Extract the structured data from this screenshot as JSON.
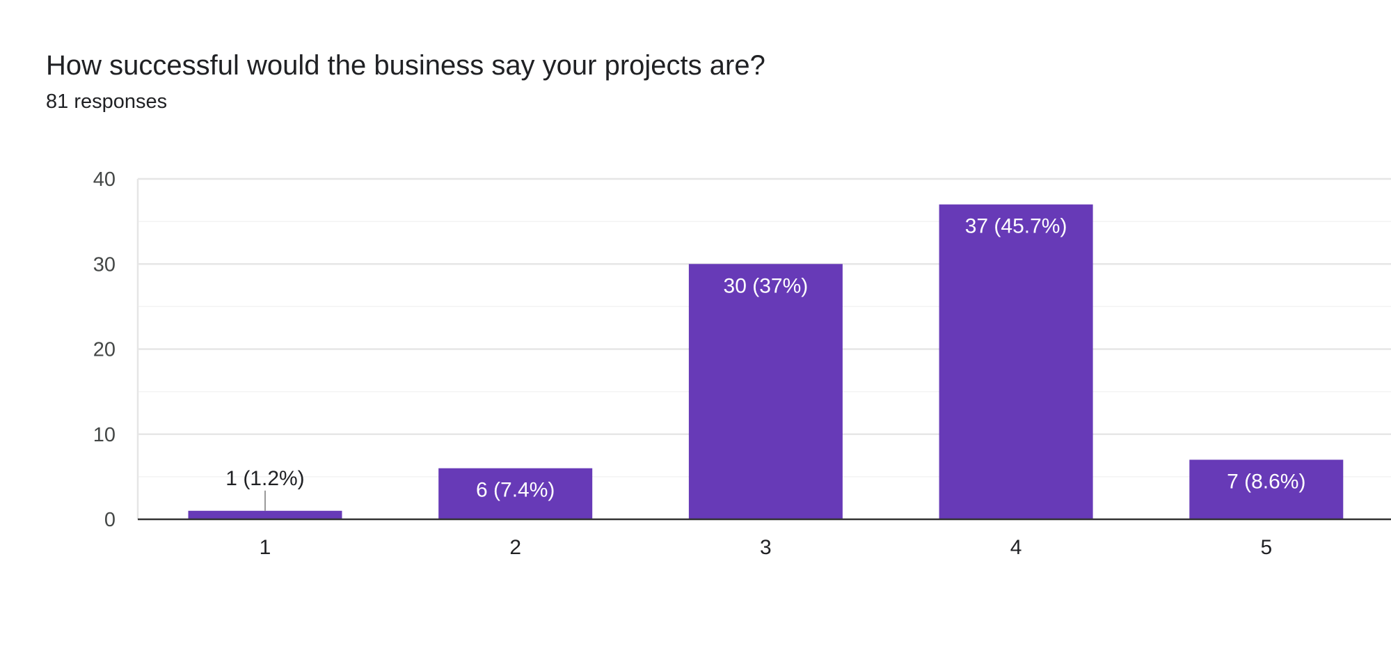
{
  "question": {
    "title": "How successful would the business say your projects are?",
    "responses_label": "81 responses"
  },
  "colors": {
    "bar": "#673AB7",
    "grid_major": "#e6e6e6",
    "grid_minor": "#f3f3f3",
    "axis": "#333333",
    "label_inside": "#ffffff",
    "label_outside": "#202124",
    "leader_line": "#999999"
  },
  "chart_data": {
    "type": "bar",
    "categories": [
      "1",
      "2",
      "3",
      "4",
      "5"
    ],
    "values": [
      1,
      6,
      30,
      37,
      7
    ],
    "data_labels": [
      "1 (1.2%)",
      "6 (7.4%)",
      "30 (37%)",
      "37 (45.7%)",
      "7 (8.6%)"
    ],
    "ylim": [
      0,
      40
    ],
    "yticks": [
      "0",
      "10",
      "20",
      "30",
      "40"
    ],
    "grid": true,
    "xlabel": "",
    "ylabel": ""
  }
}
